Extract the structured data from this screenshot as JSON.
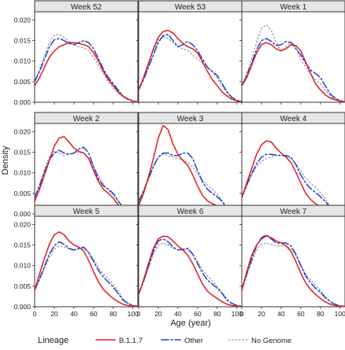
{
  "chart_data": {
    "type": "line",
    "subtype": "density small multiples (3x3 facet grid)",
    "xlabel": "Age (year)",
    "ylabel": "Density",
    "xlim": [
      0,
      105
    ],
    "ylim": [
      0,
      0.022
    ],
    "x_ticks": [
      0,
      20,
      40,
      60,
      80,
      100
    ],
    "x_tick_labels": [
      "0",
      "20",
      "40",
      "60",
      "80",
      "100"
    ],
    "y_ticks": [
      0,
      0.005,
      0.01,
      0.015,
      0.02
    ],
    "y_tick_labels": [
      "0.000",
      "0.005",
      "0.010",
      "0.015",
      "0.020"
    ],
    "grid": false,
    "legend": {
      "title": "Lineage",
      "position": "bottom",
      "entries": [
        "B.1.1.7",
        "Other",
        "No Genome"
      ]
    },
    "series_styles": [
      {
        "name": "B.1.1.7",
        "color": "#e31a1c",
        "dash": "solid"
      },
      {
        "name": "Other",
        "color": "#1f3fd1",
        "dash": "long-dash-dot"
      },
      {
        "name": "No Genome",
        "color": "#999999",
        "dash": "dotted"
      }
    ],
    "x": [
      0,
      5,
      10,
      15,
      20,
      25,
      30,
      35,
      40,
      45,
      50,
      55,
      60,
      65,
      70,
      75,
      80,
      85,
      90,
      95,
      100,
      105
    ],
    "panels": [
      {
        "title": "Week 52",
        "series": [
          {
            "name": "B.1.1.7",
            "values": [
              0.004,
              0.006,
              0.0085,
              0.011,
              0.0125,
              0.0135,
              0.014,
              0.0145,
              0.0145,
              0.0143,
              0.014,
              0.0135,
              0.012,
              0.01,
              0.0075,
              0.0055,
              0.004,
              0.0025,
              0.0015,
              0.0008,
              0.0003,
              0.0001
            ]
          },
          {
            "name": "Other",
            "values": [
              0.005,
              0.0075,
              0.0105,
              0.0135,
              0.0152,
              0.0155,
              0.015,
              0.0143,
              0.014,
              0.0145,
              0.015,
              0.0145,
              0.013,
              0.0105,
              0.008,
              0.006,
              0.0045,
              0.003,
              0.0015,
              0.0007,
              0.0003,
              0.0001
            ]
          },
          {
            "name": "No Genome",
            "values": [
              0.005,
              0.008,
              0.0115,
              0.0145,
              0.0163,
              0.0165,
              0.0158,
              0.0148,
              0.014,
              0.0135,
              0.0132,
              0.0125,
              0.011,
              0.009,
              0.007,
              0.005,
              0.0035,
              0.0022,
              0.0012,
              0.0006,
              0.0002,
              0.0001
            ]
          }
        ]
      },
      {
        "title": "Week 53",
        "series": [
          {
            "name": "B.1.1.7",
            "values": [
              0.003,
              0.006,
              0.0095,
              0.013,
              0.0158,
              0.0172,
              0.0175,
              0.0168,
              0.0155,
              0.0143,
              0.0135,
              0.013,
              0.012,
              0.0098,
              0.0075,
              0.0055,
              0.004,
              0.0025,
              0.0015,
              0.0007,
              0.0003,
              0.0001
            ]
          },
          {
            "name": "Other",
            "values": [
              0.003,
              0.0055,
              0.0085,
              0.0115,
              0.0145,
              0.0162,
              0.0165,
              0.015,
              0.0135,
              0.014,
              0.0148,
              0.014,
              0.0125,
              0.0105,
              0.0085,
              0.0075,
              0.0065,
              0.0045,
              0.0025,
              0.0012,
              0.0005,
              0.0002
            ]
          },
          {
            "name": "No Genome",
            "values": [
              0.003,
              0.006,
              0.009,
              0.0125,
              0.0152,
              0.016,
              0.0155,
              0.0145,
              0.0135,
              0.013,
              0.0125,
              0.0115,
              0.0105,
              0.0095,
              0.0085,
              0.0075,
              0.0058,
              0.004,
              0.0022,
              0.001,
              0.0004,
              0.0001
            ]
          }
        ]
      },
      {
        "title": "Week 1",
        "series": [
          {
            "name": "B.1.1.7",
            "values": [
              0.004,
              0.006,
              0.009,
              0.012,
              0.014,
              0.0145,
              0.014,
              0.013,
              0.0125,
              0.013,
              0.014,
              0.0138,
              0.0125,
              0.0098,
              0.007,
              0.0045,
              0.003,
              0.0018,
              0.001,
              0.0006,
              0.0002,
              0.0001
            ]
          },
          {
            "name": "Other",
            "values": [
              0.004,
              0.0065,
              0.0095,
              0.0128,
              0.015,
              0.0155,
              0.0148,
              0.0138,
              0.014,
              0.0148,
              0.0145,
              0.013,
              0.0115,
              0.0095,
              0.0078,
              0.007,
              0.006,
              0.004,
              0.002,
              0.001,
              0.0004,
              0.0001
            ]
          },
          {
            "name": "No Genome",
            "values": [
              0.004,
              0.007,
              0.0105,
              0.0145,
              0.018,
              0.0188,
              0.0175,
              0.0145,
              0.0125,
              0.0135,
              0.0148,
              0.0135,
              0.0105,
              0.0085,
              0.0068,
              0.0055,
              0.0045,
              0.003,
              0.0015,
              0.0007,
              0.0003,
              0.0001
            ]
          }
        ]
      },
      {
        "title": "Week 2",
        "series": [
          {
            "name": "B.1.1.7",
            "values": [
              0.003,
              0.006,
              0.0095,
              0.013,
              0.0165,
              0.0185,
              0.0188,
              0.0175,
              0.016,
              0.0152,
              0.0148,
              0.0135,
              0.0105,
              0.0078,
              0.006,
              0.005,
              0.0038,
              0.0022,
              0.001,
              0.0005,
              0.0002,
              0.0001
            ]
          },
          {
            "name": "Other",
            "values": [
              0.004,
              0.0068,
              0.0102,
              0.0132,
              0.0148,
              0.0155,
              0.0148,
              0.0145,
              0.0148,
              0.0158,
              0.0162,
              0.0148,
              0.0115,
              0.0085,
              0.0068,
              0.006,
              0.005,
              0.0032,
              0.0015,
              0.0007,
              0.0003,
              0.0001
            ]
          },
          {
            "name": "No Genome",
            "values": [
              0.004,
              0.0072,
              0.0108,
              0.014,
              0.0152,
              0.0148,
              0.0142,
              0.0145,
              0.0148,
              0.015,
              0.0148,
              0.0135,
              0.0115,
              0.0092,
              0.0072,
              0.0058,
              0.0045,
              0.003,
              0.0015,
              0.0007,
              0.0003,
              0.0001
            ]
          }
        ]
      },
      {
        "title": "Week 3",
        "series": [
          {
            "name": "B.1.1.7",
            "values": [
              0.002,
              0.005,
              0.009,
              0.0135,
              0.0185,
              0.0215,
              0.0205,
              0.017,
              0.0145,
              0.013,
              0.0118,
              0.0095,
              0.0068,
              0.0045,
              0.0032,
              0.0025,
              0.002,
              0.0012,
              0.0006,
              0.0003,
              0.0001,
              0.0001
            ]
          },
          {
            "name": "Other",
            "values": [
              0.003,
              0.0055,
              0.0085,
              0.0115,
              0.0138,
              0.0148,
              0.0148,
              0.0142,
              0.0142,
              0.0148,
              0.0148,
              0.0135,
              0.0105,
              0.0078,
              0.006,
              0.005,
              0.0042,
              0.003,
              0.0015,
              0.0007,
              0.0003,
              0.0001
            ]
          },
          {
            "name": "No Genome",
            "values": [
              0.003,
              0.0058,
              0.0088,
              0.0118,
              0.0138,
              0.0145,
              0.0142,
              0.0138,
              0.0135,
              0.0132,
              0.0125,
              0.0115,
              0.0098,
              0.0082,
              0.007,
              0.006,
              0.0048,
              0.0032,
              0.0016,
              0.0007,
              0.0003,
              0.0001
            ]
          }
        ]
      },
      {
        "title": "Week 4",
        "series": [
          {
            "name": "B.1.1.7",
            "values": [
              0.004,
              0.0075,
              0.011,
              0.0145,
              0.0168,
              0.0178,
              0.0175,
              0.016,
              0.0148,
              0.0138,
              0.0125,
              0.0102,
              0.0075,
              0.005,
              0.0035,
              0.0025,
              0.0018,
              0.0012,
              0.0006,
              0.0003,
              0.0001,
              0.0001
            ]
          },
          {
            "name": "Other",
            "values": [
              0.004,
              0.007,
              0.0098,
              0.0122,
              0.0138,
              0.0145,
              0.0145,
              0.0143,
              0.0142,
              0.0142,
              0.0138,
              0.012,
              0.0095,
              0.0075,
              0.0062,
              0.0052,
              0.0042,
              0.003,
              0.0016,
              0.0008,
              0.0003,
              0.0001
            ]
          },
          {
            "name": "No Genome",
            "values": [
              0.004,
              0.0068,
              0.0095,
              0.0115,
              0.0128,
              0.0135,
              0.014,
              0.0142,
              0.0142,
              0.014,
              0.0135,
              0.0122,
              0.0105,
              0.0088,
              0.0075,
              0.0065,
              0.0052,
              0.0036,
              0.0018,
              0.0008,
              0.0003,
              0.0001
            ]
          }
        ]
      },
      {
        "title": "Week 5",
        "series": [
          {
            "name": "B.1.1.7",
            "values": [
              0.004,
              0.008,
              0.0118,
              0.0152,
              0.0175,
              0.0182,
              0.0175,
              0.016,
              0.015,
              0.0145,
              0.0135,
              0.0112,
              0.0085,
              0.006,
              0.0042,
              0.003,
              0.002,
              0.0012,
              0.0006,
              0.0003,
              0.0001,
              0.0001
            ]
          },
          {
            "name": "Other",
            "values": [
              0.004,
              0.0068,
              0.0098,
              0.0128,
              0.0148,
              0.0158,
              0.0152,
              0.0142,
              0.0138,
              0.0142,
              0.0145,
              0.0132,
              0.011,
              0.0088,
              0.0072,
              0.006,
              0.0048,
              0.0032,
              0.0016,
              0.0008,
              0.0003,
              0.0001
            ]
          },
          {
            "name": "No Genome",
            "values": [
              0.004,
              0.0065,
              0.0092,
              0.012,
              0.014,
              0.0148,
              0.0145,
              0.014,
              0.0138,
              0.014,
              0.0142,
              0.0132,
              0.0115,
              0.0095,
              0.008,
              0.0068,
              0.0055,
              0.0038,
              0.0019,
              0.0008,
              0.0003,
              0.0001
            ]
          }
        ]
      },
      {
        "title": "Week 6",
        "series": [
          {
            "name": "B.1.1.7",
            "values": [
              0.003,
              0.0065,
              0.0105,
              0.0142,
              0.0165,
              0.0172,
              0.017,
              0.016,
              0.0148,
              0.0138,
              0.0125,
              0.0105,
              0.008,
              0.0055,
              0.0038,
              0.0028,
              0.002,
              0.0012,
              0.0006,
              0.0003,
              0.0001,
              0.0001
            ]
          },
          {
            "name": "Other",
            "values": [
              0.003,
              0.0062,
              0.0098,
              0.0135,
              0.016,
              0.0165,
              0.0158,
              0.0145,
              0.0138,
              0.014,
              0.0142,
              0.0128,
              0.0105,
              0.0082,
              0.0065,
              0.0055,
              0.0045,
              0.0032,
              0.0016,
              0.0008,
              0.0003,
              0.0001
            ]
          },
          {
            "name": "No Genome",
            "values": [
              0.003,
              0.006,
              0.0095,
              0.0128,
              0.015,
              0.0155,
              0.015,
              0.0142,
              0.0138,
              0.0138,
              0.0138,
              0.0128,
              0.011,
              0.009,
              0.0075,
              0.0063,
              0.005,
              0.0035,
              0.0018,
              0.0008,
              0.0003,
              0.0001
            ]
          }
        ]
      },
      {
        "title": "Week 7",
        "series": [
          {
            "name": "B.1.1.7",
            "values": [
              0.004,
              0.0085,
              0.0125,
              0.015,
              0.0165,
              0.0172,
              0.0168,
              0.016,
              0.0155,
              0.0148,
              0.0135,
              0.011,
              0.0082,
              0.0058,
              0.0042,
              0.003,
              0.002,
              0.0012,
              0.0006,
              0.0003,
              0.0001,
              0.0001
            ]
          },
          {
            "name": "Other",
            "values": [
              0.004,
              0.008,
              0.0115,
              0.0148,
              0.0168,
              0.0175,
              0.0165,
              0.0155,
              0.0155,
              0.0155,
              0.0148,
              0.0128,
              0.01,
              0.0075,
              0.0058,
              0.0045,
              0.0035,
              0.0022,
              0.0012,
              0.0006,
              0.0002,
              0.0001
            ]
          },
          {
            "name": "No Genome",
            "values": [
              0.004,
              0.0075,
              0.0108,
              0.0138,
              0.0152,
              0.0155,
              0.0152,
              0.0148,
              0.0148,
              0.0148,
              0.0142,
              0.0125,
              0.0102,
              0.008,
              0.0065,
              0.0052,
              0.004,
              0.0026,
              0.0013,
              0.0006,
              0.0002,
              0.0001
            ]
          }
        ]
      }
    ]
  }
}
